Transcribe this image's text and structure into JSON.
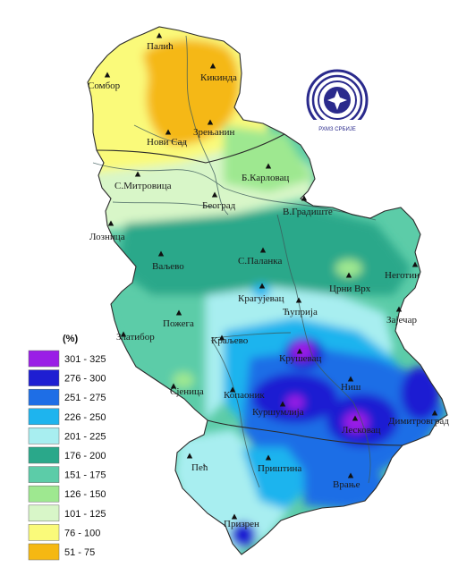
{
  "legend": {
    "title": "(%)",
    "classes": [
      {
        "label": "301 - 325",
        "color": "#9a1ee6"
      },
      {
        "label": "276 - 300",
        "color": "#1e1ed2"
      },
      {
        "label": "251 - 275",
        "color": "#1e6ee6"
      },
      {
        "label": "226 - 250",
        "color": "#1eb4ee"
      },
      {
        "label": "201 - 225",
        "color": "#a8eef0"
      },
      {
        "label": "176 - 200",
        "color": "#2aa88a"
      },
      {
        "label": "151 - 175",
        "color": "#5ccca8"
      },
      {
        "label": "126 - 150",
        "color": "#9ee890"
      },
      {
        "label": "101 - 125",
        "color": "#d8f6c8"
      },
      {
        "label": "76 - 100",
        "color": "#fafa7a"
      },
      {
        "label": "51 - 75",
        "color": "#f5b812"
      }
    ]
  },
  "cities": [
    {
      "id": "palic",
      "name": "Палић"
    },
    {
      "id": "sombor",
      "name": "Сомбор"
    },
    {
      "id": "kikinda",
      "name": "Кикинда"
    },
    {
      "id": "zrenjanin",
      "name": "Зрењанин"
    },
    {
      "id": "novi-sad",
      "name": "Нови Сад"
    },
    {
      "id": "sremska-mitrovica",
      "name": "С.Митровица"
    },
    {
      "id": "b-karlovac",
      "name": "Б.Карловац"
    },
    {
      "id": "beograd",
      "name": "Београд"
    },
    {
      "id": "v-gradiste",
      "name": "В.Градиште"
    },
    {
      "id": "loznica",
      "name": "Лозница"
    },
    {
      "id": "s-palanka",
      "name": "С.Паланка"
    },
    {
      "id": "negotin",
      "name": "Неготин"
    },
    {
      "id": "valjevo",
      "name": "Ваљево"
    },
    {
      "id": "crni-vrh",
      "name": "Црни Врх"
    },
    {
      "id": "kragujevac",
      "name": "Крагујевац"
    },
    {
      "id": "cuprija",
      "name": "Ћуприја"
    },
    {
      "id": "zajecar",
      "name": "Зајечар"
    },
    {
      "id": "pozega",
      "name": "Пожега"
    },
    {
      "id": "zlatibor",
      "name": "Златибор"
    },
    {
      "id": "kraljevo",
      "name": "Краљево"
    },
    {
      "id": "krusevac",
      "name": "Крушевац"
    },
    {
      "id": "sjenica",
      "name": "Сјеница"
    },
    {
      "id": "nis",
      "name": "Ниш"
    },
    {
      "id": "kopaonik",
      "name": "Копаоник"
    },
    {
      "id": "kursumlija",
      "name": "Куршумлија"
    },
    {
      "id": "dimitrovgrad",
      "name": "Димитровград"
    },
    {
      "id": "leskovac",
      "name": "Лесковац"
    },
    {
      "id": "pec",
      "name": "Пећ"
    },
    {
      "id": "pristina",
      "name": "Приштина"
    },
    {
      "id": "vranje",
      "name": "Врање"
    },
    {
      "id": "prizren",
      "name": "Призрен"
    }
  ],
  "logo": {
    "caption": "РХМЗ СРБИЈЕ",
    "ring_color": "#2a2a8c"
  }
}
